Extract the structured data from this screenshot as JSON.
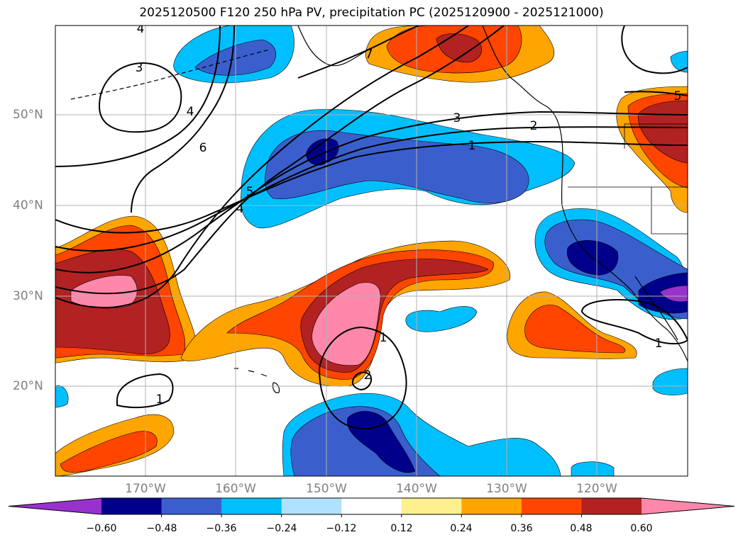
{
  "title": "2025120500 F120 250 hPa PV, precipitation PC (2025120900 - 2025121000)",
  "lat_labels": [
    {
      "text": "50°N",
      "lat": 50
    },
    {
      "text": "40°N",
      "lat": 40
    },
    {
      "text": "30°N",
      "lat": 30
    },
    {
      "text": "20°N",
      "lat": 20
    }
  ],
  "lon_labels": [
    {
      "text": "170°W",
      "lon": -170
    },
    {
      "text": "160°W",
      "lon": -160
    },
    {
      "text": "150°W",
      "lon": -150
    },
    {
      "text": "140°W",
      "lon": -140
    },
    {
      "text": "130°W",
      "lon": -130
    },
    {
      "text": "120°W",
      "lon": -120
    }
  ],
  "colorbar": {
    "colors": [
      "#9932cc",
      "#00008b",
      "#3a5fcd",
      "#00bfff",
      "#b0e2ff",
      "#ffffff",
      "#fff08f",
      "#ffa500",
      "#ff4500",
      "#b22222",
      "#ff88aa"
    ],
    "labels": [
      "−0.60",
      "−0.48",
      "−0.36",
      "−0.24",
      "−0.12",
      "0.12",
      "0.24",
      "0.36",
      "0.48",
      "0.60"
    ]
  },
  "contour_labels": [
    {
      "text": "4",
      "id": "c4a"
    },
    {
      "text": "3",
      "id": "c3a"
    },
    {
      "text": "4",
      "id": "c4b"
    },
    {
      "text": "6",
      "id": "c6"
    },
    {
      "text": "7",
      "id": "c7"
    },
    {
      "text": "3",
      "id": "c3b"
    },
    {
      "text": "2",
      "id": "c2a"
    },
    {
      "text": "1",
      "id": "c1a"
    },
    {
      "text": "5",
      "id": "c5a"
    },
    {
      "text": "4",
      "id": "c4c"
    },
    {
      "text": "5",
      "id": "c5b"
    },
    {
      "text": "1",
      "id": "c1b"
    },
    {
      "text": "2",
      "id": "c2b"
    },
    {
      "text": "1",
      "id": "c1c"
    },
    {
      "text": "1",
      "id": "c1d"
    }
  ]
}
